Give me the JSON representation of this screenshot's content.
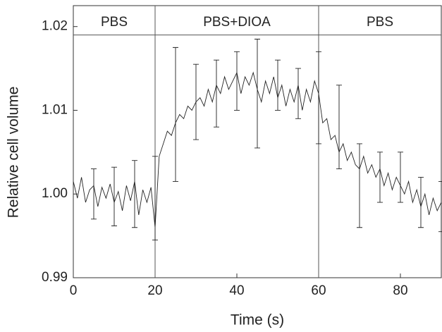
{
  "chart_data": {
    "type": "line",
    "x_label": "Time (s)",
    "y_label": "Relative cell volume",
    "xlim": [
      0,
      90
    ],
    "xticks": [
      0,
      20,
      40,
      60,
      80
    ],
    "ylim": [
      0.99,
      1.0225
    ],
    "yticks": [
      0.99,
      {
        "value": 1,
        "label": "1.00"
      },
      1.01,
      1.02
    ],
    "x": [
      0,
      1,
      2,
      3,
      4,
      5,
      6,
      7,
      8,
      9,
      10,
      11,
      12,
      13,
      14,
      15,
      16,
      17,
      18,
      19,
      20,
      21,
      22,
      23,
      24,
      25,
      26,
      27,
      28,
      29,
      30,
      31,
      32,
      33,
      34,
      35,
      36,
      37,
      38,
      39,
      40,
      41,
      42,
      43,
      44,
      45,
      46,
      47,
      48,
      49,
      50,
      51,
      52,
      53,
      54,
      55,
      56,
      57,
      58,
      59,
      60,
      61,
      62,
      63,
      64,
      65,
      66,
      67,
      68,
      69,
      70,
      71,
      72,
      73,
      74,
      75,
      76,
      77,
      78,
      79,
      80,
      81,
      82,
      83,
      84,
      85,
      86,
      87,
      88,
      89,
      90
    ],
    "series": [
      {
        "color": "#222222",
        "values": [
          1.0015,
          0.9995,
          1.002,
          0.999,
          1.0005,
          1.001,
          0.9985,
          1.0008,
          0.9995,
          1.0012,
          0.999,
          1.0003,
          0.998,
          1.001,
          0.9992,
          1.0015,
          0.9975,
          1.0005,
          0.999,
          1.0008,
          0.996,
          1.0045,
          1.006,
          1.0075,
          1.007,
          1.0085,
          1.0095,
          1.009,
          1.0105,
          1.01,
          1.011,
          1.0115,
          1.0105,
          1.0125,
          1.011,
          1.013,
          1.012,
          1.014,
          1.0125,
          1.0135,
          1.0145,
          1.012,
          1.014,
          1.013,
          1.0145,
          1.0125,
          1.011,
          1.0135,
          1.012,
          1.014,
          1.0115,
          1.013,
          1.0105,
          1.0125,
          1.011,
          1.013,
          1.01,
          1.0125,
          1.011,
          1.0135,
          1.012,
          1.0085,
          1.009,
          1.0065,
          1.007,
          1.005,
          1.006,
          1.004,
          1.005,
          1.0035,
          1.003,
          1.0045,
          1.0025,
          1.0035,
          1.002,
          1.003,
          1.001,
          1.0025,
          1.0005,
          1.002,
          1.001,
          1,
          1.0015,
          0.999,
          1.0005,
          0.9985,
          1,
          0.9975,
          0.9995,
          0.998,
          0.999
        ]
      }
    ],
    "error_bars": {
      "color": "#222222",
      "x": [
        5,
        10,
        15,
        20,
        25,
        30,
        35,
        40,
        45,
        50,
        55,
        60,
        65,
        70,
        75,
        80,
        85,
        90
      ],
      "values": [
        1,
        0.9997,
        1,
        0.9995,
        1.0095,
        1.011,
        1.012,
        1.0135,
        1.012,
        1.013,
        1.012,
        1.0115,
        1.008,
        1.001,
        1.002,
        1.002,
        0.999,
        0.9985
      ],
      "errors": [
        0.003,
        0.0035,
        0.004,
        0.005,
        0.008,
        0.0045,
        0.004,
        0.0035,
        0.0065,
        0.003,
        0.003,
        0.0055,
        0.005,
        0.005,
        0.003,
        0.003,
        0.003,
        0.003
      ]
    },
    "phases": [
      {
        "label": "PBS",
        "start": 0,
        "end": 20
      },
      {
        "label": "PBS+DIOA",
        "start": 20,
        "end": 60
      },
      {
        "label": "PBS",
        "start": 60,
        "end": 90
      }
    ],
    "phase_line_y": 1.019
  }
}
